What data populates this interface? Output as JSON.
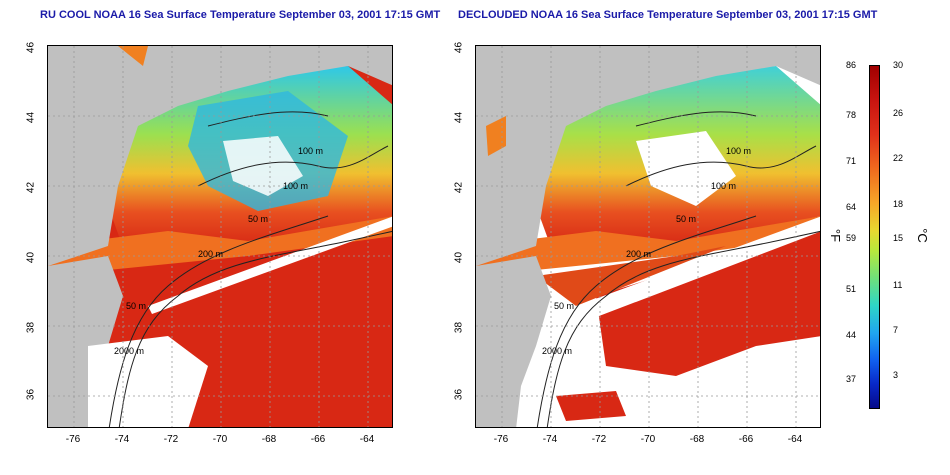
{
  "titles": {
    "left": "RU COOL NOAA 16 Sea Surface Temperature September 03, 2001 17:15 GMT",
    "right": "DECLOUDED NOAA 16 Sea Surface Temperature September 03, 2001 17:15 GMT"
  },
  "axes": {
    "lat_ticks": [
      "46",
      "44",
      "42",
      "40",
      "38",
      "36"
    ],
    "lon_ticks": [
      "-76",
      "-74",
      "-72",
      "-70",
      "-68",
      "-66",
      "-64"
    ]
  },
  "contours": {
    "labels": [
      "100 m",
      "100 m",
      "50 m",
      "200 m",
      "50 m",
      "2000 m"
    ]
  },
  "colorbar": {
    "fahrenheit_ticks": [
      "86",
      "78",
      "71",
      "64",
      "59",
      "51",
      "44",
      "37"
    ],
    "celsius_ticks": [
      "30",
      "26",
      "22",
      "18",
      "15",
      "11",
      "7",
      "3"
    ],
    "unit_f": "°F",
    "unit_c": "°C"
  },
  "colors": {
    "land": "#c0c0c0",
    "cloud_masked": "#ffffff",
    "title": "#1a1aa8"
  }
}
